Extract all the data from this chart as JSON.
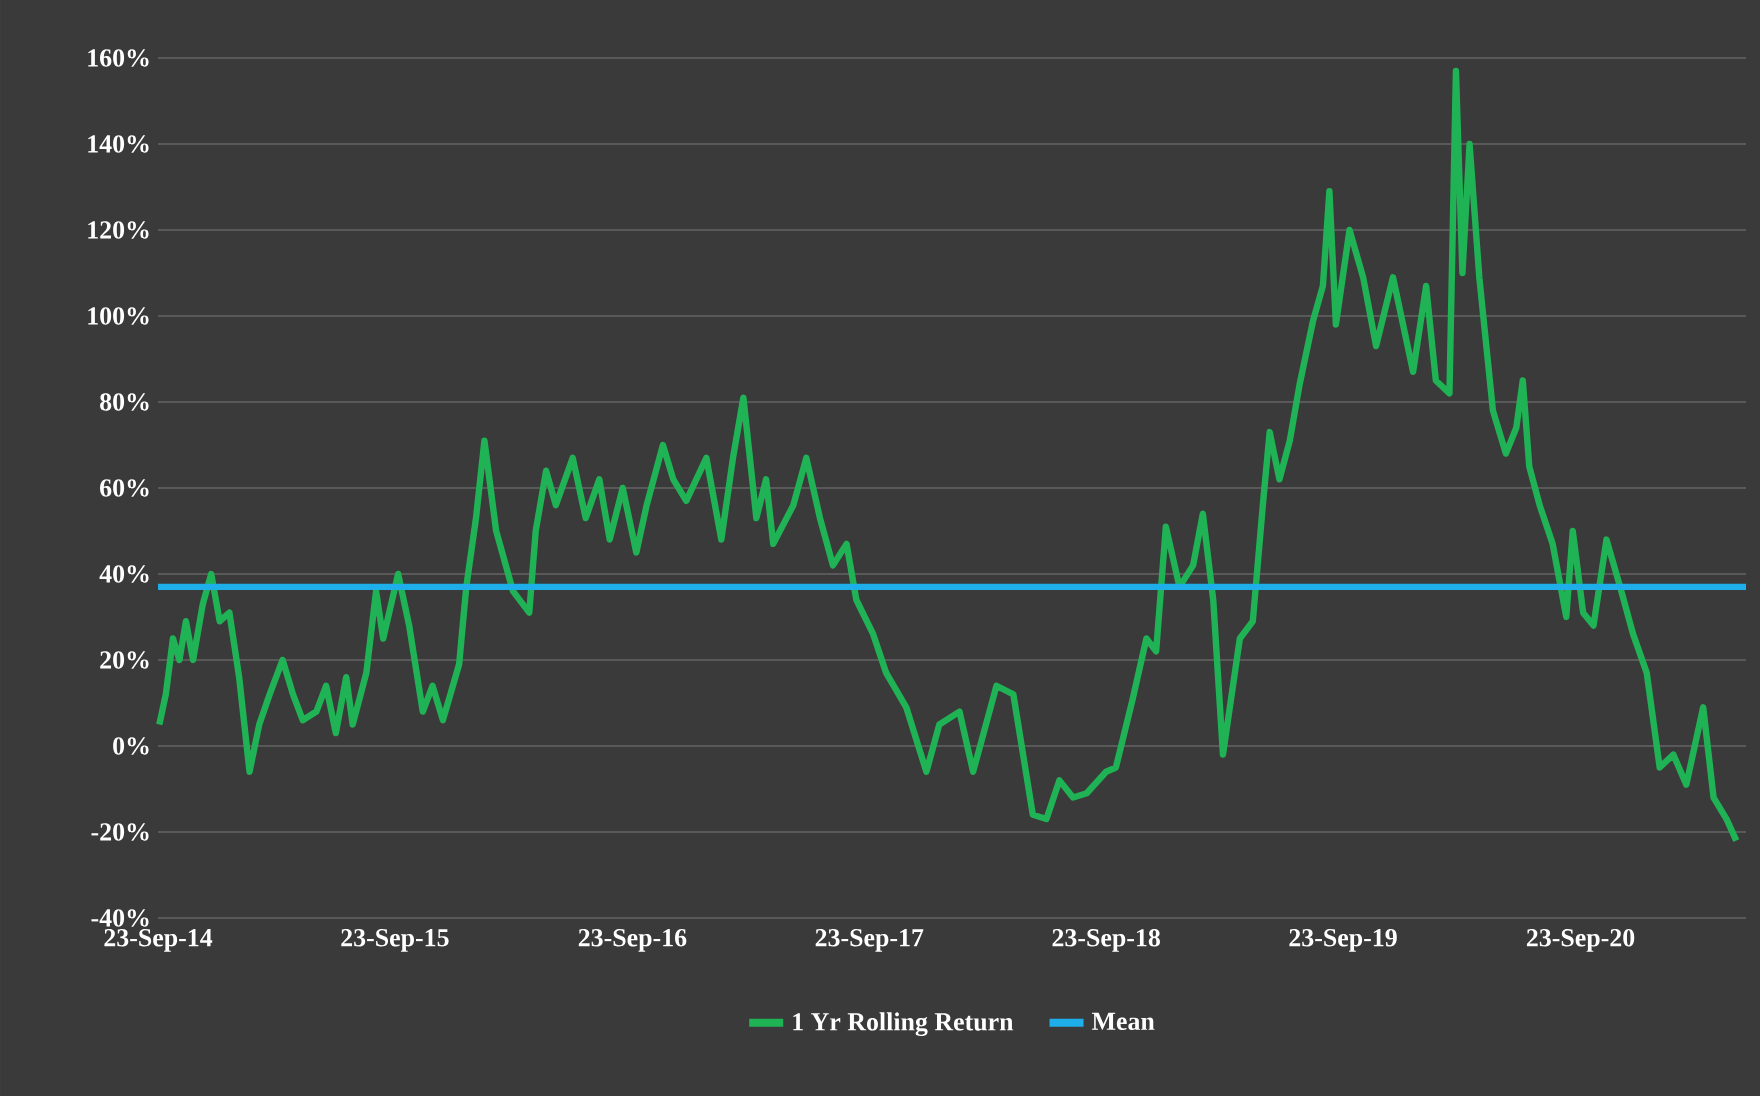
{
  "chart_data": {
    "type": "line",
    "xlim": [
      "2014-09-23",
      "2021-06-05"
    ],
    "xticks": [
      {
        "value": "2014-09-23",
        "label": "23-Sep-14"
      },
      {
        "value": "2015-09-23",
        "label": "23-Sep-15"
      },
      {
        "value": "2016-09-23",
        "label": "23-Sep-16"
      },
      {
        "value": "2017-09-23",
        "label": "23-Sep-17"
      },
      {
        "value": "2018-09-23",
        "label": "23-Sep-18"
      },
      {
        "value": "2019-09-23",
        "label": "23-Sep-19"
      },
      {
        "value": "2020-09-23",
        "label": "23-Sep-20"
      }
    ],
    "ylim": [
      -40,
      160
    ],
    "yticks": [
      {
        "value": -40,
        "label": "-40%"
      },
      {
        "value": -20,
        "label": "-20%"
      },
      {
        "value": 0,
        "label": "0%"
      },
      {
        "value": 20,
        "label": "20%"
      },
      {
        "value": 40,
        "label": "40%"
      },
      {
        "value": 60,
        "label": "60%"
      },
      {
        "value": 80,
        "label": "80%"
      },
      {
        "value": 100,
        "label": "100%"
      },
      {
        "value": 120,
        "label": "120%"
      },
      {
        "value": 140,
        "label": "140%"
      },
      {
        "value": 160,
        "label": "160%"
      }
    ],
    "grid": "y",
    "legend": "bottom",
    "series": [
      {
        "name": "1 Yr Rolling Return",
        "color": "#1fb356",
        "x": [
          "2014-09-25",
          "2014-10-05",
          "2014-10-16",
          "2014-10-26",
          "2014-11-05",
          "2014-11-16",
          "2014-12-01",
          "2014-12-14",
          "2014-12-27",
          "2015-01-11",
          "2015-01-26",
          "2015-02-11",
          "2015-02-26",
          "2015-03-14",
          "2015-04-03",
          "2015-04-19",
          "2015-05-04",
          "2015-05-25",
          "2015-06-09",
          "2015-06-24",
          "2015-07-10",
          "2015-07-20",
          "2015-08-10",
          "2015-08-25",
          "2015-09-05",
          "2015-09-28",
          "2015-10-15",
          "2015-11-05",
          "2015-11-20",
          "2015-12-06",
          "2015-12-31",
          "2016-01-11",
          "2016-01-26",
          "2016-02-08",
          "2016-02-26",
          "2016-03-23",
          "2016-04-17",
          "2016-04-27",
          "2016-05-13",
          "2016-05-28",
          "2016-06-23",
          "2016-07-13",
          "2016-08-03",
          "2016-08-19",
          "2016-09-08",
          "2016-09-29",
          "2016-10-15",
          "2016-11-09",
          "2016-11-25",
          "2016-12-15",
          "2017-01-15",
          "2017-02-07",
          "2017-02-25",
          "2017-03-13",
          "2017-04-02",
          "2017-04-17",
          "2017-04-28",
          "2017-05-29",
          "2017-06-18",
          "2017-07-09",
          "2017-07-29",
          "2017-08-19",
          "2017-09-03",
          "2017-09-29",
          "2017-10-19",
          "2017-11-19",
          "2017-12-20",
          "2018-01-09",
          "2018-02-09",
          "2018-03-02",
          "2018-04-07",
          "2018-05-03",
          "2018-06-02",
          "2018-06-23",
          "2018-07-13",
          "2018-08-03",
          "2018-08-24",
          "2018-09-23",
          "2018-10-08",
          "2018-11-03",
          "2018-11-24",
          "2018-12-09",
          "2018-12-24",
          "2019-01-14",
          "2019-02-04",
          "2019-02-19",
          "2019-03-07",
          "2019-03-22",
          "2019-04-17",
          "2019-05-07",
          "2019-05-23",
          "2019-06-02",
          "2019-06-17",
          "2019-07-03",
          "2019-07-18",
          "2019-08-08",
          "2019-08-23",
          "2019-09-02",
          "2019-09-12",
          "2019-10-03",
          "2019-10-24",
          "2019-11-13",
          "2019-12-09",
          "2020-01-09",
          "2020-01-29",
          "2020-02-13",
          "2020-03-05",
          "2020-03-15",
          "2020-03-25",
          "2020-04-05",
          "2020-04-20",
          "2020-05-11",
          "2020-05-31",
          "2020-06-16",
          "2020-06-26",
          "2020-07-06",
          "2020-07-22",
          "2020-08-11",
          "2020-09-01",
          "2020-09-11",
          "2020-09-27",
          "2020-10-13",
          "2020-11-02",
          "2020-11-23",
          "2020-12-13",
          "2021-01-03",
          "2021-01-23",
          "2021-02-13",
          "2021-03-05",
          "2021-03-31",
          "2021-04-16",
          "2021-05-06",
          "2021-05-21"
        ],
        "values": [
          5,
          12,
          25,
          20,
          29,
          20,
          33,
          40,
          29,
          31,
          16,
          -6,
          5,
          12,
          20,
          12,
          6,
          8,
          14,
          3,
          16,
          5,
          17,
          36,
          25,
          40,
          28,
          8,
          14,
          6,
          19,
          37,
          53,
          71,
          50,
          36,
          31,
          50,
          64,
          56,
          67,
          53,
          62,
          48,
          60,
          45,
          56,
          70,
          62,
          57,
          67,
          48,
          67,
          81,
          53,
          62,
          47,
          56,
          67,
          53,
          42,
          47,
          34,
          26,
          17,
          9,
          -6,
          5,
          8,
          -6,
          14,
          12,
          -16,
          -17,
          -8,
          -12,
          -11,
          -6,
          -5,
          11,
          25,
          22,
          51,
          37,
          42,
          54,
          34,
          -2,
          25,
          29,
          57,
          73,
          62,
          71,
          84,
          99,
          107,
          129,
          98,
          120,
          109,
          93,
          109,
          87,
          107,
          85,
          82,
          157,
          110,
          140,
          109,
          78,
          68,
          74,
          85,
          65,
          56,
          47,
          30,
          50,
          31,
          28,
          48,
          37,
          26,
          17,
          -5,
          -2,
          -9,
          9,
          -12,
          -17,
          -22
        ]
      },
      {
        "name": "Mean",
        "color": "#1eaeea",
        "x": [
          "2014-09-23",
          "2021-06-05"
        ],
        "values": [
          37,
          37
        ]
      }
    ]
  }
}
